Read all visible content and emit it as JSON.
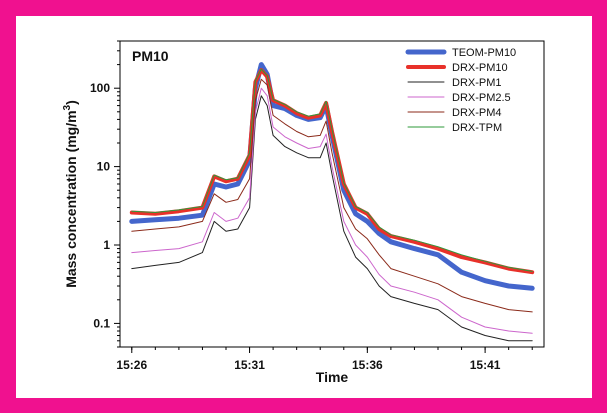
{
  "colors": {
    "border": "#f0118f",
    "background": "#ffffff"
  },
  "chart_data": {
    "type": "line",
    "title": "PM10",
    "xlabel": "Time",
    "ylabel": "Mass concentration (mg/m",
    "ylabel_sup": "3",
    "ylabel_end": ")",
    "y_scale": "log",
    "ylim": [
      0.05,
      400
    ],
    "xlim": [
      "15:25:30",
      "15:43:30"
    ],
    "x_ticks": [
      "15:26",
      "15:31",
      "15:36",
      "15:41"
    ],
    "y_ticks": [
      "0.1",
      "1",
      "10",
      "100"
    ],
    "legend_position": "top-right",
    "x": [
      "15:26:00",
      "15:27:00",
      "15:28:00",
      "15:29:00",
      "15:29:30",
      "15:30:00",
      "15:30:30",
      "15:31:00",
      "15:31:15",
      "15:31:30",
      "15:31:45",
      "15:32:00",
      "15:32:30",
      "15:33:00",
      "15:33:30",
      "15:34:00",
      "15:34:15",
      "15:34:30",
      "15:35:00",
      "15:35:30",
      "15:36:00",
      "15:36:30",
      "15:37:00",
      "15:38:00",
      "15:39:00",
      "15:40:00",
      "15:41:00",
      "15:42:00",
      "15:43:00"
    ],
    "series": [
      {
        "name": "TEOM-PM10",
        "color": "#4466cc",
        "width": 5,
        "values": [
          2.0,
          2.1,
          2.2,
          2.4,
          6.0,
          5.5,
          6.0,
          12,
          100,
          200,
          150,
          60,
          55,
          45,
          40,
          42,
          60,
          25,
          5.0,
          2.5,
          2.0,
          1.4,
          1.1,
          0.9,
          0.75,
          0.45,
          0.35,
          0.3,
          0.28
        ]
      },
      {
        "name": "DRX-PM10",
        "color": "#e8312a",
        "width": 4,
        "values": [
          2.6,
          2.5,
          2.7,
          3.0,
          7.5,
          6.5,
          7.0,
          14,
          120,
          170,
          140,
          70,
          60,
          48,
          42,
          45,
          65,
          28,
          6.0,
          3.0,
          2.5,
          1.6,
          1.3,
          1.1,
          0.9,
          0.7,
          0.6,
          0.5,
          0.45
        ]
      },
      {
        "name": "DRX-PM1",
        "color": "#222222",
        "width": 1,
        "values": [
          0.5,
          0.55,
          0.6,
          0.8,
          2.0,
          1.5,
          1.6,
          3.0,
          40,
          80,
          60,
          25,
          18,
          15,
          13,
          13,
          20,
          8,
          1.5,
          0.7,
          0.5,
          0.3,
          0.22,
          0.18,
          0.15,
          0.09,
          0.07,
          0.06,
          0.06
        ]
      },
      {
        "name": "DRX-PM2.5",
        "color": "#cc66cc",
        "width": 1,
        "values": [
          0.8,
          0.85,
          0.9,
          1.1,
          2.6,
          2.0,
          2.2,
          4.0,
          50,
          100,
          80,
          32,
          24,
          20,
          17,
          18,
          26,
          10,
          2.0,
          1.0,
          0.7,
          0.42,
          0.3,
          0.25,
          0.2,
          0.12,
          0.09,
          0.08,
          0.075
        ]
      },
      {
        "name": "DRX-PM4",
        "color": "#8b2a1a",
        "width": 1,
        "values": [
          1.5,
          1.6,
          1.7,
          2.0,
          4.5,
          3.5,
          3.8,
          7.0,
          70,
          130,
          110,
          45,
          35,
          28,
          24,
          25,
          38,
          15,
          3.0,
          1.6,
          1.2,
          0.75,
          0.5,
          0.4,
          0.32,
          0.22,
          0.18,
          0.15,
          0.14
        ]
      },
      {
        "name": "DRX-TPM",
        "color": "#2e9a3a",
        "width": 1,
        "values": [
          2.7,
          2.6,
          2.8,
          3.1,
          7.8,
          6.8,
          7.2,
          15,
          125,
          175,
          145,
          72,
          62,
          50,
          44,
          47,
          68,
          30,
          6.2,
          3.1,
          2.6,
          1.7,
          1.35,
          1.15,
          0.95,
          0.75,
          0.62,
          0.52,
          0.46
        ]
      }
    ]
  }
}
